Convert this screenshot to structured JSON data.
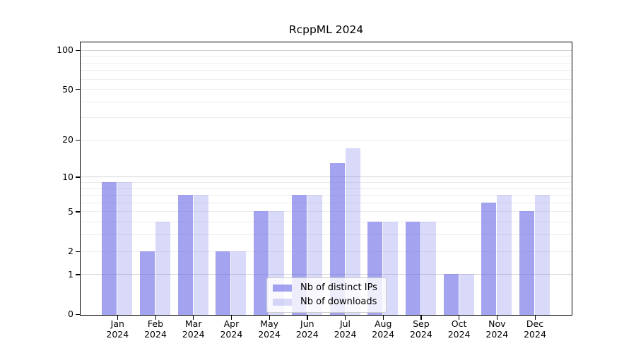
{
  "title": "RcppML 2024",
  "chart_data": {
    "type": "bar",
    "title": "RcppML 2024",
    "categories": [
      "Jan",
      "Feb",
      "Mar",
      "Apr",
      "May",
      "Jun",
      "Jul",
      "Aug",
      "Sep",
      "Oct",
      "Nov",
      "Dec"
    ],
    "year": "2024",
    "series": [
      {
        "name": "Nb of distinct IPs",
        "color": "#6666e6",
        "alpha": 0.6,
        "hex_on_white": "#a3a3f0",
        "values": [
          9,
          2,
          7,
          2,
          5,
          7,
          13,
          4,
          4,
          1,
          6,
          5
        ]
      },
      {
        "name": "Nb of downloads",
        "color": "#6666e6",
        "alpha": 0.25,
        "hex_on_white": "#d9d9f9",
        "values": [
          9,
          4,
          7,
          2,
          5,
          7,
          17,
          4,
          4,
          1,
          7,
          7
        ]
      }
    ],
    "xlabel": "",
    "ylabel": "",
    "yscale": "log1p",
    "ylim": [
      0,
      117
    ],
    "y_ticks": [
      0,
      1,
      2,
      5,
      10,
      20,
      50,
      100
    ],
    "y_major_gridlines": [
      1,
      10,
      100
    ],
    "y_minor_gridlines": [
      2,
      3,
      4,
      5,
      6,
      7,
      8,
      9,
      20,
      30,
      40,
      50,
      60,
      70,
      80,
      90
    ],
    "grid": "horizontal",
    "legend_position": "inside lower-center",
    "frame_color": "#000000",
    "major_grid_color": "#d2d2d2",
    "minor_grid_color": "#ededed"
  }
}
